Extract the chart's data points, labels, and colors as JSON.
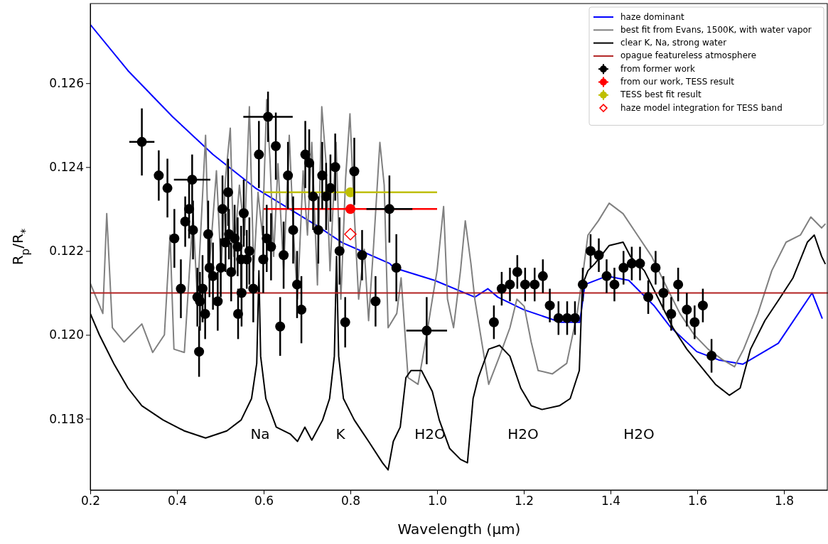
{
  "chart_data": {
    "type": "line",
    "xlabel": "Wavelength (μm)",
    "ylabel": "R$_{p}$/R$_{*}$",
    "xlim": [
      0.2,
      1.9
    ],
    "ylim": [
      0.1163,
      0.1279
    ],
    "xticks": [
      0.2,
      0.4,
      0.6,
      0.8,
      {
        "value": 1.0,
        "label": "1.0"
      },
      1.2,
      1.4,
      1.6,
      1.8
    ],
    "yticks": [
      0.118,
      {
        "value": 0.12,
        "label": "0.120"
      },
      0.122,
      0.124,
      0.126
    ],
    "grid": false,
    "legend": "top right",
    "line_style": "solid",
    "annotations": [
      "Na",
      "K",
      "H2O",
      "H2O",
      "H2O"
    ],
    "series": [
      {
        "type": "line",
        "name": "haze dominant",
        "color": "#0000ff",
        "x": [
          0.2,
          0.287,
          0.39,
          0.483,
          0.581,
          0.723,
          0.781,
          0.891,
          0.9,
          0.994,
          1.087,
          1.117,
          1.14,
          1.2,
          1.285,
          1.329,
          1.341,
          1.391,
          1.442,
          1.5,
          1.537,
          1.599,
          1.65,
          1.705,
          1.787,
          1.865,
          1.888
        ],
        "values": [
          0.1274,
          0.1263,
          0.1252,
          0.1243,
          0.1235,
          0.1226,
          0.1222,
          0.1217,
          0.1216,
          0.1213,
          0.1209,
          0.1211,
          0.1209,
          0.1206,
          0.1203,
          0.1203,
          0.1212,
          0.1214,
          0.1213,
          0.1207,
          0.1202,
          0.1196,
          0.1194,
          0.1193,
          0.1198,
          0.121,
          0.1204
        ]
      },
      {
        "type": "line",
        "name": "best fit from Evans, 1500K, with water vapor",
        "color": "#808080",
        "x": [
          0.2,
          0.229,
          0.238,
          0.251,
          0.278,
          0.319,
          0.344,
          0.371,
          0.384,
          0.393,
          0.417,
          0.437,
          0.447,
          0.466,
          0.474,
          0.491,
          0.502,
          0.512,
          0.523,
          0.531,
          0.544,
          0.556,
          0.567,
          0.577,
          0.587,
          0.597,
          0.607,
          0.615,
          0.623,
          0.633,
          0.646,
          0.659,
          0.669,
          0.678,
          0.691,
          0.701,
          0.711,
          0.724,
          0.734,
          0.744,
          0.753,
          0.767,
          0.778,
          0.789,
          0.799,
          0.809,
          0.819,
          0.832,
          0.842,
          0.853,
          0.868,
          0.878,
          0.887,
          0.907,
          0.917,
          0.933,
          0.956,
          0.976,
          0.989,
          1.0,
          1.015,
          1.024,
          1.038,
          1.054,
          1.065,
          1.078,
          1.087,
          1.103,
          1.119,
          1.144,
          1.168,
          1.184,
          1.201,
          1.217,
          1.233,
          1.266,
          1.299,
          1.323,
          1.335,
          1.348,
          1.372,
          1.397,
          1.429,
          1.462,
          1.495,
          1.527,
          1.56,
          1.593,
          1.625,
          1.658,
          1.686,
          1.707,
          1.74,
          1.772,
          1.805,
          1.838,
          1.862,
          1.887,
          1.895
        ],
        "values": [
          0.12123,
          0.12051,
          0.12289,
          0.12017,
          0.11983,
          0.12026,
          0.11958,
          0.12,
          0.12238,
          0.11966,
          0.11958,
          0.12289,
          0.12085,
          0.12476,
          0.12153,
          0.12391,
          0.12153,
          0.12374,
          0.12493,
          0.12187,
          0.12357,
          0.12238,
          0.12544,
          0.12153,
          0.1234,
          0.12238,
          0.12561,
          0.12408,
          0.12187,
          0.12408,
          0.12153,
          0.12476,
          0.12238,
          0.12085,
          0.12391,
          0.12238,
          0.12459,
          0.12119,
          0.12544,
          0.12408,
          0.12153,
          0.12459,
          0.12085,
          0.12374,
          0.12527,
          0.12289,
          0.12085,
          0.12204,
          0.12034,
          0.12204,
          0.12459,
          0.12357,
          0.12017,
          0.12051,
          0.12136,
          0.11898,
          0.11882,
          0.12,
          0.12085,
          0.12153,
          0.12306,
          0.12085,
          0.12017,
          0.12153,
          0.12272,
          0.1217,
          0.12085,
          0.11983,
          0.11882,
          0.11949,
          0.12017,
          0.12085,
          0.12068,
          0.11983,
          0.11915,
          0.11907,
          0.11932,
          0.12051,
          0.12136,
          0.12238,
          0.12272,
          0.12314,
          0.12289,
          0.12238,
          0.12187,
          0.12119,
          0.12051,
          0.12,
          0.11966,
          0.11941,
          0.11924,
          0.11966,
          0.12051,
          0.12153,
          0.12221,
          0.12238,
          0.12281,
          0.12255,
          0.12264
        ]
      },
      {
        "type": "line",
        "name": "clear K, Na, strong water",
        "color": "#000000",
        "x": [
          0.2,
          0.221,
          0.254,
          0.287,
          0.319,
          0.368,
          0.417,
          0.466,
          0.515,
          0.548,
          0.572,
          0.584,
          0.589,
          0.593,
          0.605,
          0.629,
          0.662,
          0.678,
          0.695,
          0.711,
          0.736,
          0.752,
          0.763,
          0.768,
          0.773,
          0.784,
          0.809,
          0.842,
          0.874,
          0.887,
          0.899,
          0.915,
          0.928,
          0.94,
          0.964,
          0.989,
          1.005,
          1.029,
          1.054,
          1.07,
          1.083,
          1.095,
          1.119,
          1.144,
          1.168,
          1.193,
          1.217,
          1.242,
          1.282,
          1.307,
          1.328,
          1.335,
          1.348,
          1.364,
          1.397,
          1.429,
          1.446,
          1.478,
          1.511,
          1.544,
          1.576,
          1.609,
          1.642,
          1.674,
          1.699,
          1.723,
          1.756,
          1.789,
          1.821,
          1.854,
          1.87,
          1.887,
          1.895
        ],
        "values": [
          0.12051,
          0.12,
          0.11932,
          0.11873,
          0.11831,
          0.11797,
          0.11771,
          0.11754,
          0.11771,
          0.11797,
          0.11848,
          0.11932,
          0.12153,
          0.11949,
          0.11848,
          0.1178,
          0.11763,
          0.11746,
          0.1178,
          0.11749,
          0.11797,
          0.11848,
          0.11949,
          0.12187,
          0.11949,
          0.11848,
          0.11797,
          0.11746,
          0.11695,
          0.11678,
          0.11746,
          0.1178,
          0.11898,
          0.11915,
          0.11915,
          0.11865,
          0.11797,
          0.11729,
          0.11703,
          0.11695,
          0.11848,
          0.11898,
          0.11966,
          0.11975,
          0.11949,
          0.11873,
          0.11831,
          0.11822,
          0.11831,
          0.11848,
          0.11915,
          0.12119,
          0.12153,
          0.1217,
          0.12213,
          0.12221,
          0.12187,
          0.12153,
          0.12085,
          0.12017,
          0.11966,
          0.11924,
          0.11882,
          0.11856,
          0.11873,
          0.11966,
          0.12034,
          0.12085,
          0.12136,
          0.12221,
          0.12238,
          0.12187,
          0.1217
        ]
      },
      {
        "type": "line",
        "name": "opague featureless atmosphere",
        "color": "#b22222",
        "x": [
          0.2,
          1.9
        ],
        "values": [
          0.121,
          0.121
        ]
      },
      {
        "type": "scatter",
        "name": "from former work",
        "color": "#000000",
        "marker": "circle",
        "x": [
          0.319,
          0.358,
          0.378,
          0.394,
          0.409,
          0.419,
          0.428,
          0.435,
          0.437,
          0.447,
          0.451,
          0.453,
          0.459,
          0.465,
          0.472,
          0.475,
          0.483,
          0.494,
          0.501,
          0.505,
          0.512,
          0.518,
          0.52,
          0.525,
          0.533,
          0.54,
          0.541,
          0.548,
          0.549,
          0.554,
          0.561,
          0.567,
          0.576,
          0.589,
          0.599,
          0.607,
          0.61,
          0.617,
          0.628,
          0.638,
          0.646,
          0.656,
          0.668,
          0.677,
          0.687,
          0.696,
          0.705,
          0.714,
          0.726,
          0.735,
          0.744,
          0.754,
          0.765,
          0.775,
          0.788,
          0.809,
          0.827,
          0.858,
          0.89,
          0.906,
          0.976,
          1.131,
          1.149,
          1.168,
          1.185,
          1.203,
          1.225,
          1.244,
          1.26,
          1.28,
          1.3,
          1.318,
          1.336,
          1.354,
          1.373,
          1.391,
          1.409,
          1.43,
          1.449,
          1.468,
          1.487,
          1.504,
          1.522,
          1.54,
          1.556,
          1.576,
          1.594,
          1.613,
          1.633
        ],
        "values": [
          0.1246,
          0.1238,
          0.1235,
          0.1223,
          0.1211,
          0.1227,
          0.123,
          0.1237,
          0.1225,
          0.1209,
          0.1196,
          0.1208,
          0.1211,
          0.1205,
          0.1224,
          0.1216,
          0.1214,
          0.1208,
          0.1216,
          0.123,
          0.1222,
          0.1234,
          0.1224,
          0.1215,
          0.1223,
          0.1221,
          0.1205,
          0.1218,
          0.121,
          0.1229,
          0.1218,
          0.122,
          0.1211,
          0.1243,
          0.1218,
          0.1223,
          0.1252,
          0.1221,
          0.1245,
          0.1202,
          0.1219,
          0.1238,
          0.1225,
          0.1212,
          0.1206,
          0.1243,
          0.1241,
          0.1233,
          0.1225,
          0.1238,
          0.1233,
          0.1235,
          0.124,
          0.122,
          0.1203,
          0.1239,
          0.1219,
          0.1208,
          0.123,
          0.1216,
          0.1201,
          0.1203,
          0.1211,
          0.1212,
          0.1215,
          0.1212,
          0.1212,
          0.1214,
          0.1207,
          0.1204,
          0.1204,
          0.1204,
          0.1212,
          0.122,
          0.1219,
          0.1214,
          0.1212,
          0.1216,
          0.1217,
          0.1217,
          0.1209,
          0.1216,
          0.121,
          0.1205,
          0.1212,
          0.1206,
          0.1203,
          0.1207,
          0.1195
        ],
        "errors": [
          0.0008,
          0.0006,
          0.0007,
          0.0007,
          0.0007,
          0.0006,
          0.0007,
          0.0006,
          0.0007,
          0.0007,
          0.0006,
          0.0007,
          0.0008,
          0.0006,
          0.0008,
          0.0007,
          0.0008,
          0.0007,
          0.0007,
          0.0008,
          0.0007,
          0.0008,
          0.0006,
          0.0007,
          0.0008,
          0.0007,
          0.0006,
          0.0008,
          0.0008,
          0.0008,
          0.0007,
          0.0008,
          0.0008,
          0.0008,
          0.0008,
          0.0008,
          0.0006,
          0.0008,
          0.0008,
          0.0007,
          0.0008,
          0.0008,
          0.0008,
          0.0008,
          0.0008,
          0.0008,
          0.0008,
          0.0008,
          0.0008,
          0.0008,
          0.0008,
          0.0008,
          0.0008,
          0.0008,
          0.0006,
          0.0008,
          0.0006,
          0.0006,
          0.0008,
          0.0008,
          0.0008,
          0.0004,
          0.0004,
          0.0004,
          0.0004,
          0.0004,
          0.0004,
          0.0004,
          0.0004,
          0.0004,
          0.0004,
          0.0004,
          0.0004,
          0.0004,
          0.0004,
          0.0004,
          0.0004,
          0.0004,
          0.0004,
          0.0004,
          0.0004,
          0.0004,
          0.0004,
          0.0004,
          0.0004,
          0.0004,
          0.0004,
          0.0004,
          0.0004
        ],
        "xerrors": [
          0.029,
          null,
          null,
          null,
          null,
          null,
          null,
          0.042,
          null,
          null,
          null,
          null,
          null,
          null,
          null,
          null,
          null,
          null,
          null,
          null,
          null,
          null,
          null,
          null,
          null,
          null,
          null,
          null,
          null,
          null,
          null,
          null,
          null,
          null,
          null,
          null,
          0.057,
          null,
          null,
          null,
          null,
          null,
          null,
          null,
          null,
          null,
          null,
          null,
          null,
          null,
          null,
          null,
          null,
          null,
          null,
          null,
          null,
          null,
          0.053,
          null,
          0.047,
          null,
          null,
          null,
          null,
          null,
          null,
          null,
          null,
          null,
          null,
          null,
          null,
          null,
          null,
          null,
          null,
          null,
          null,
          null,
          null,
          null,
          null,
          null,
          null,
          null,
          null,
          null,
          null
        ]
      },
      {
        "type": "scatter",
        "name": "from our work, TESS result",
        "color": "#ff0000",
        "marker": "circle",
        "x": [
          0.8
        ],
        "values": [
          0.123
        ],
        "errors": [
          0.0001
        ],
        "xerrors": [
          0.2
        ]
      },
      {
        "type": "scatter",
        "name": "TESS best fit result",
        "color": "#bfbf00",
        "marker": "circle",
        "x": [
          0.8
        ],
        "values": [
          0.1234
        ],
        "errors": [
          0.0001
        ],
        "xerrors": [
          0.2
        ]
      },
      {
        "type": "scatter",
        "name": "haze model integration for TESS band",
        "color": "#ff0000",
        "marker": "diamond",
        "x": [
          0.8
        ],
        "values": [
          0.1224
        ]
      }
    ]
  }
}
